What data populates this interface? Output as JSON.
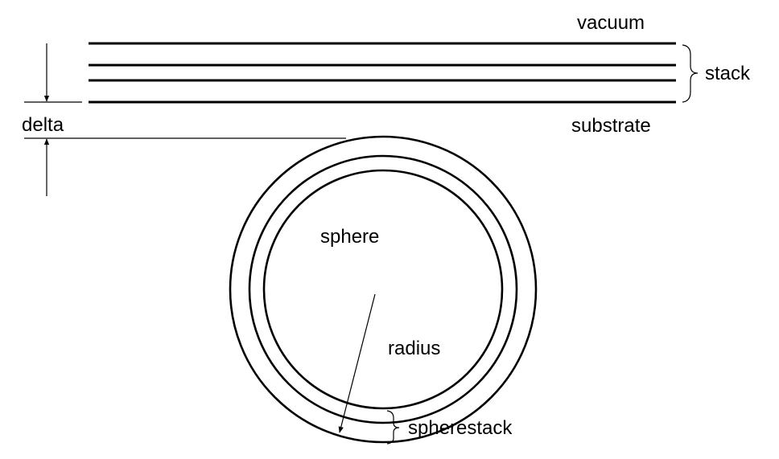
{
  "labels": {
    "vacuum": "vacuum",
    "stack": "stack",
    "substrate": "substrate",
    "delta": "delta",
    "sphere": "sphere",
    "radius": "radius",
    "spherestack": "spherestack"
  }
}
